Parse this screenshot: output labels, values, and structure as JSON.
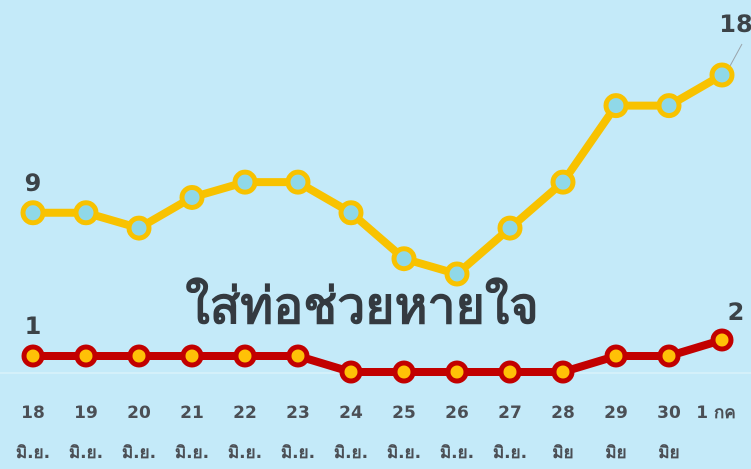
{
  "chart_data": {
    "type": "line",
    "title": "",
    "xlabel": "",
    "ylabel": "",
    "ylim": [
      0,
      18
    ],
    "grid": false,
    "legend": "none",
    "categories": [
      {
        "day": "18",
        "month": "มิ.ย."
      },
      {
        "day": "19",
        "month": "มิ.ย."
      },
      {
        "day": "20",
        "month": "มิ.ย."
      },
      {
        "day": "21",
        "month": "มิ.ย."
      },
      {
        "day": "22",
        "month": "มิ.ย."
      },
      {
        "day": "23",
        "month": "มิ.ย."
      },
      {
        "day": "24",
        "month": "มิ.ย."
      },
      {
        "day": "25",
        "month": "มิ.ย."
      },
      {
        "day": "26",
        "month": "มิ.ย."
      },
      {
        "day": "27",
        "month": "มิ.ย."
      },
      {
        "day": "28",
        "month": "มิย"
      },
      {
        "day": "29",
        "month": "มิย"
      },
      {
        "day": "30",
        "month": "มิย"
      },
      {
        "day": "1 กค",
        "month": ""
      }
    ],
    "series": [
      {
        "values": [
          9,
          9,
          8,
          10,
          11,
          11,
          9,
          6,
          5,
          8,
          11,
          16,
          16,
          18
        ],
        "line_color": "#f8c200",
        "marker_fill": "#8fd8e8",
        "labels": [
          {
            "index": 0,
            "text": "9"
          },
          {
            "index": 13,
            "text": "18"
          }
        ]
      },
      {
        "values": [
          1,
          1,
          1,
          1,
          1,
          1,
          0,
          0,
          0,
          0,
          0,
          1,
          1,
          2
        ],
        "line_color": "#c20000",
        "marker_fill": "#ffc107",
        "labels": [
          {
            "index": 0,
            "text": "1"
          },
          {
            "index": 13,
            "text": "2"
          }
        ]
      }
    ],
    "annotations": [
      {
        "text": "ใส่ท่อช่วยหายใจ"
      }
    ]
  }
}
